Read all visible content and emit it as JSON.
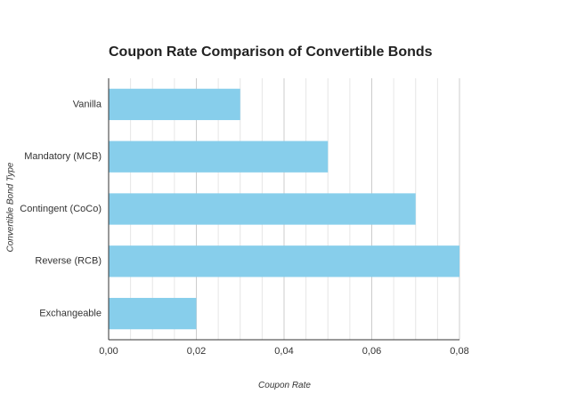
{
  "chart_data": {
    "type": "bar",
    "orientation": "horizontal",
    "title": "Coupon Rate Comparison of Convertible Bonds",
    "xlabel": "Coupon Rate",
    "ylabel": "Convertible Bond Type",
    "categories": [
      "Vanilla",
      "Mandatory (MCB)",
      "Contingent (CoCo)",
      "Reverse (RCB)",
      "Exchangeable"
    ],
    "values": [
      0.03,
      0.05,
      0.07,
      0.08,
      0.02
    ],
    "xlim": [
      0,
      0.08
    ],
    "x_ticks": [
      0,
      0.02,
      0.04,
      0.06,
      0.08
    ],
    "x_tick_labels": [
      "0,00",
      "0,02",
      "0,04",
      "0,06",
      "0,08"
    ],
    "grid": true,
    "legend": "none",
    "bar_color": "#87CEEB"
  }
}
